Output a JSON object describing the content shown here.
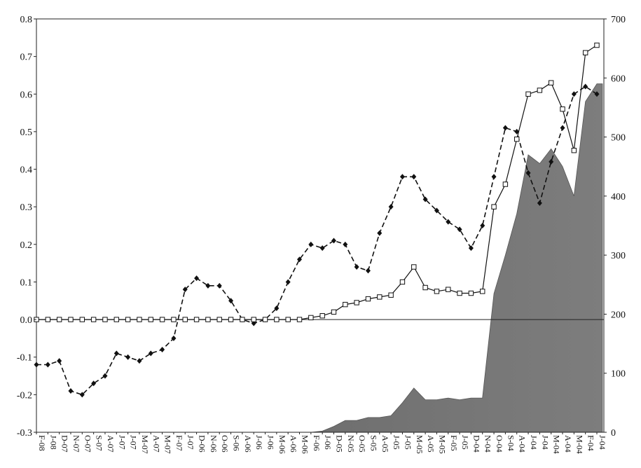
{
  "chart_data": {
    "type": "line",
    "categories": [
      "F-08",
      "J-08",
      "D-07",
      "N-07",
      "O-07",
      "S-07",
      "A-07",
      "J-07",
      "J-07",
      "M-07",
      "A-07",
      "M-07",
      "F-07",
      "J-07",
      "D-06",
      "N-06",
      "O-06",
      "S-06",
      "A-06",
      "J-06",
      "J-06",
      "M-06",
      "A-06",
      "M-06",
      "F-06",
      "J-06",
      "D-05",
      "N-05",
      "O-05",
      "S-05",
      "A-05",
      "J-05",
      "J-05",
      "M-05",
      "A-05",
      "M-05",
      "F-05",
      "J-05",
      "D-04",
      "N-04",
      "O-04",
      "S-04",
      "A-04",
      "J-04",
      "J-04",
      "M-04",
      "A-04",
      "M-04",
      "F-04",
      "J-04"
    ],
    "left_axis": {
      "ylim": [
        -0.3,
        0.8
      ],
      "ticks": [
        "0.8",
        "0.7",
        "0.6",
        "0.5",
        "0.4",
        "0.3",
        "0.2",
        "0.1",
        "0.0",
        "-0.1",
        "-0.2",
        "-0.3"
      ]
    },
    "right_axis": {
      "ylim": [
        0,
        700
      ],
      "ticks": [
        "700",
        "600",
        "500",
        "400",
        "300",
        "200",
        "100",
        "0"
      ]
    },
    "series": [
      {
        "style": "dashed-filled-diamond",
        "axis": "left",
        "values": [
          -0.12,
          -0.12,
          -0.11,
          -0.19,
          -0.2,
          -0.17,
          -0.15,
          -0.09,
          -0.1,
          -0.11,
          -0.09,
          -0.08,
          -0.05,
          0.08,
          0.11,
          0.09,
          0.09,
          0.05,
          0.0,
          -0.01,
          0.0,
          0.03,
          0.1,
          0.16,
          0.2,
          0.19,
          0.21,
          0.2,
          0.14,
          0.13,
          0.23,
          0.3,
          0.38,
          0.38,
          0.32,
          0.29,
          0.26,
          0.24,
          0.19,
          0.25,
          0.38,
          0.51,
          0.5,
          0.39,
          0.31,
          0.42,
          0.51,
          0.6,
          0.62,
          0.6
        ]
      },
      {
        "style": "solid-open-square",
        "axis": "left",
        "values": [
          0,
          0,
          0,
          0,
          0,
          0,
          0,
          0,
          0,
          0,
          0,
          0,
          0,
          0,
          0,
          0,
          0,
          0,
          0,
          0,
          0,
          0,
          0,
          0,
          0.005,
          0.01,
          0.02,
          0.04,
          0.045,
          0.055,
          0.06,
          0.065,
          0.1,
          0.14,
          0.085,
          0.075,
          0.08,
          0.07,
          0.07,
          0.075,
          0.3,
          0.36,
          0.48,
          0.6,
          0.61,
          0.63,
          0.56,
          0.45,
          0.71,
          0.73
        ]
      },
      {
        "style": "gray-area",
        "axis": "right",
        "values": [
          0,
          0,
          0,
          0,
          0,
          0,
          0,
          0,
          0,
          0,
          0,
          0,
          0,
          0,
          0,
          0,
          0,
          0,
          0,
          0,
          0,
          0,
          0,
          0,
          0,
          2,
          10,
          20,
          20,
          25,
          25,
          28,
          50,
          75,
          55,
          55,
          58,
          55,
          58,
          58,
          235,
          300,
          370,
          470,
          455,
          480,
          450,
          400,
          560,
          590
        ]
      }
    ],
    "grid": false,
    "legend": "none"
  }
}
